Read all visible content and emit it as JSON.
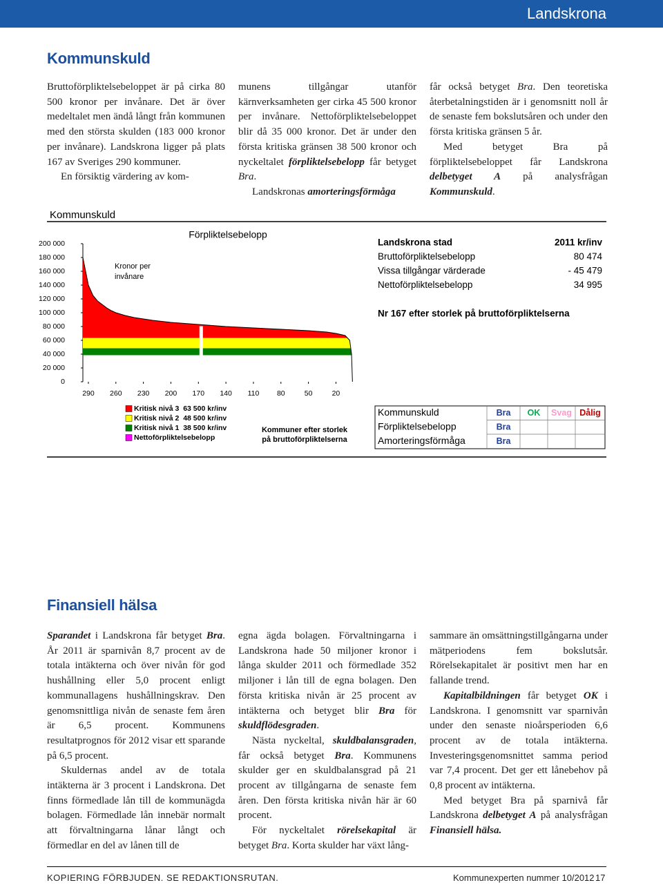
{
  "header": {
    "title": "Landskrona"
  },
  "section1": {
    "title": "Kommunskuld",
    "columns": [
      [
        [
          "Bruttoförpliktelsebeloppet är på cirka 80 500 kronor per invånare. Det är över medeltalet men ändå långt från kommunen med den största skulden (183 000 kronor per invånare). Landskrona ligger på plats 167 av Sveriges 290 kommuner."
        ],
        [
          "En försiktig värdering av kom-"
        ]
      ],
      [
        [
          "munens tillgångar utanför kärnverksamheten ger cirka 45 500 kronor per invånare. Nettoförpliktelsebeloppet blir då 35 000 kronor. Det är under den första kritiska gränsen 38 500 kronor och nyckeltalet ",
          {
            "text": "förpliktelsebelopp",
            "style": "bi"
          },
          " får betyget ",
          {
            "text": "Bra",
            "style": "i"
          },
          "."
        ],
        [
          "Landskronas ",
          {
            "text": "amorteringsförmåga",
            "style": "bi"
          }
        ]
      ],
      [
        [
          "får också betyget ",
          {
            "text": "Bra",
            "style": "i"
          },
          ". Den teoretiska återbetalningstiden är i genomsnitt noll år de senaste fem bokslutsåren och under den första kritiska gränsen 5 år."
        ],
        [
          "Med betyget Bra på förpliktelsebeloppet får Landskrona ",
          {
            "text": "delbetyget A",
            "style": "bi"
          },
          " på analysfrågan ",
          {
            "text": "Kommunskuld",
            "style": "bi"
          },
          "."
        ]
      ]
    ]
  },
  "chart_box": {
    "title": "Kommunskuld"
  },
  "chart_data": {
    "type": "area",
    "title": "Förpliktelsebelopp",
    "y_label": [
      "Kronor per",
      "invånare"
    ],
    "x_label": [
      "Kommuner efter storlek",
      "på bruttoförpliktelserna"
    ],
    "xlim": [
      296,
      0
    ],
    "xticks": [
      290,
      260,
      230,
      200,
      170,
      140,
      110,
      80,
      50,
      20
    ],
    "ylim": [
      0,
      200000
    ],
    "yticks": [
      0,
      {
        "value": 20000,
        "label": "20 000"
      },
      {
        "value": 40000,
        "label": "40 000"
      },
      {
        "value": 60000,
        "label": "60 000"
      },
      {
        "value": 80000,
        "label": "80 000"
      },
      {
        "value": 100000,
        "label": "100 000"
      },
      {
        "value": 120000,
        "label": "120 000"
      },
      {
        "value": 140000,
        "label": "140 000"
      },
      {
        "value": 160000,
        "label": "160 000"
      },
      {
        "value": 180000,
        "label": "180 000"
      },
      {
        "value": 200000,
        "label": "200 000"
      }
    ],
    "x": [
      296,
      290,
      285,
      280,
      275,
      270,
      265,
      260,
      250,
      240,
      230,
      220,
      200,
      170,
      140,
      110,
      80,
      50,
      30,
      20,
      10,
      5,
      3,
      2
    ],
    "values": [
      180000,
      140000,
      125000,
      117000,
      112000,
      107000,
      103000,
      100000,
      96000,
      93000,
      91000,
      89000,
      86000,
      83000,
      80000,
      78000,
      76000,
      74000,
      72000,
      70000,
      67000,
      60000,
      40000,
      0
    ],
    "levels": [
      {
        "name": "Kritisk nivå 3  63 500 kr/inv",
        "value": 63500,
        "color": "#ff0000"
      },
      {
        "name": "Kritisk nivå 2  48 500 kr/inv",
        "value": 48500,
        "color": "#ffff00"
      },
      {
        "name": "Kritisk nivå 1  38 500 kr/inv",
        "value": 38500,
        "color": "#008000"
      }
    ],
    "net_legend": {
      "name": "Nettoförpliktelsebelopp",
      "color": "#ff00ff"
    },
    "marker": {
      "x": 167,
      "value": 80474,
      "color": "#ffffff"
    }
  },
  "info_table": {
    "rows": [
      [
        "Landskrona stad",
        "2011 kr/inv"
      ],
      [
        "Bruttoförpliktelsebelopp",
        "80 474"
      ],
      [
        "Vissa tillgångar värderade",
        "- 45 479"
      ],
      [
        "Nettoförpliktelsebelopp",
        "34 995"
      ]
    ],
    "note": "Nr 167 efter storlek på bruttoförpliktelserna"
  },
  "rating_table": {
    "header": [
      "Kommunskuld",
      "Bra",
      "OK",
      "Svag",
      "Dålig"
    ],
    "header_colors": [
      "#000000",
      "#1f3f99",
      "#00b050",
      "#ff99cc",
      "#c00000"
    ],
    "grade_color": "#1f3f99",
    "rows": [
      [
        "Förpliktelsebelopp",
        "Bra"
      ],
      [
        "Amorteringsförmåga",
        "Bra"
      ]
    ]
  },
  "section2": {
    "title": "Finansiell hälsa",
    "columns": [
      [
        [
          {
            "text": "Sparandet",
            "style": "bi"
          },
          " i Landskrona får betyget ",
          {
            "text": "Bra",
            "style": "bi"
          },
          ". År 2011 är sparnivån 8,7 procent av de totala intäkterna och över nivån för god hushållning eller 5,0 procent enligt kommunallagens hushållningskrav. Den genomsnittliga nivån de senaste fem åren är 6,5 procent. Kommunens resultatprognos för 2012 visar ett sparande på 6,5 procent."
        ],
        [
          "Skuldernas andel av de totala intäkterna är 3 procent i Landskrona. Det finns förmedlade lån till de kommunägda bolagen. Förmedlade lån innebär normalt att förvaltningarna lånar långt och förmedlar en del av lånen till de"
        ]
      ],
      [
        [
          "egna ägda bolagen. Förvaltningarna i Landskrona hade 50 miljoner kronor i långa skulder 2011 och förmedlade 352 miljoner i lån till de egna bolagen. Den första kritiska nivån är 25 procent av intäkterna och betyget blir ",
          {
            "text": "Bra",
            "style": "bi"
          },
          " för ",
          {
            "text": "skuldflödesgraden",
            "style": "bi"
          },
          "."
        ],
        [
          "Nästa nyckeltal, ",
          {
            "text": "skuldbalansgraden",
            "style": "bi"
          },
          ", får också betyget ",
          {
            "text": "Bra",
            "style": "bi"
          },
          ". Kommunens skulder ger en skuldbalansgrad på 21 procent av tillgångarna de senaste fem åren. Den första kritiska nivån här är 60 procent."
        ],
        [
          "För nyckeltalet ",
          {
            "text": "rörelsekapital",
            "style": "bi"
          },
          " är betyget ",
          {
            "text": "Bra",
            "style": "i"
          },
          ". Korta skulder har växt lång-"
        ]
      ],
      [
        [
          "sammare än omsättningstillgångarna under mätperiodens fem bokslutsår. Rörelsekapitalet är positivt men har en fallande trend."
        ],
        [
          {
            "text": "Kapitalbildningen",
            "style": "bi"
          },
          " får betyget ",
          {
            "text": "OK",
            "style": "bi"
          },
          " i Landskrona. I genomsnitt var sparnivån under den senaste nioårsperioden 6,6 procent av de totala intäkterna. Investeringsgenomsnittet samma period var 7,4 procent. Det ger ett lånebehov på 0,8 procent av intäkterna."
        ],
        [
          "Med betyget Bra på sparnivå får Landskrona ",
          {
            "text": "delbetyget A",
            "style": "bi"
          },
          " på analysfrågan ",
          {
            "text": "Finansiell hälsa.",
            "style": "bi"
          }
        ]
      ]
    ]
  },
  "footer": {
    "left": "KOPIERING FÖRBJUDEN. SE REDAKTIONSRUTAN.",
    "publication": "Kommunexperten nummer 10/2012",
    "page": "17"
  }
}
